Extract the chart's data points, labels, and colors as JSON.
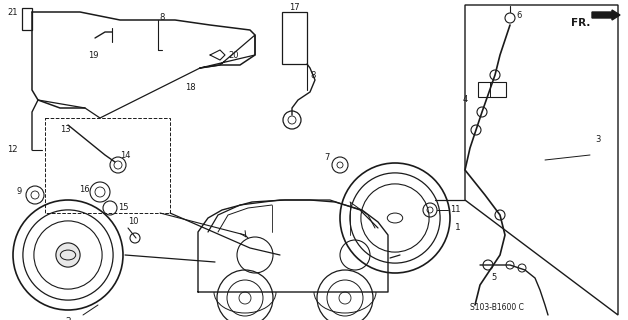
{
  "bg": "#ffffff",
  "lc": "#1a1a1a",
  "fig_w": 6.28,
  "fig_h": 3.2,
  "dpi": 100,
  "model_code": "S103-B1600 C"
}
